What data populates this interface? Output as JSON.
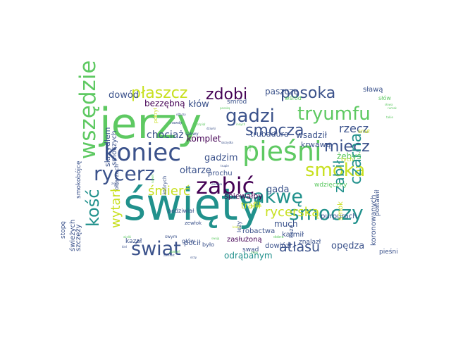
{
  "wordcloud": {
    "words": [
      {
        "text": "święty",
        "color": "#21918c"
      },
      {
        "text": "jerzy",
        "color": "#5ec962"
      },
      {
        "text": "pieśni",
        "color": "#5ec962"
      },
      {
        "text": "koniec",
        "color": "#3b528b"
      },
      {
        "text": "zabić",
        "color": "#440154"
      },
      {
        "text": "wszędzie",
        "color": "#5ec962"
      },
      {
        "text": "tryumfu",
        "color": "#5ec962"
      },
      {
        "text": "rycerz",
        "color": "#3b528b"
      },
      {
        "text": "smoczy",
        "color": "#21918c"
      },
      {
        "text": "sakwę",
        "color": "#21918c"
      },
      {
        "text": "świat",
        "color": "#3b528b"
      },
      {
        "text": "gadzi",
        "color": "#3b528b"
      },
      {
        "text": "smoka",
        "color": "#c8e020"
      },
      {
        "text": "kość",
        "color": "#21918c"
      },
      {
        "text": "posoka",
        "color": "#3b528b"
      },
      {
        "text": "zdobi",
        "color": "#440154"
      },
      {
        "text": "płaszcz",
        "color": "#c8e020"
      },
      {
        "text": "smocza",
        "color": "#3b528b"
      },
      {
        "text": "miecz",
        "color": "#3b528b"
      },
      {
        "text": "czarna",
        "color": "#21918c"
      },
      {
        "text": "zabił",
        "color": "#21918c"
      },
      {
        "text": "atłasu",
        "color": "#3b528b"
      },
      {
        "text": "wytarł",
        "color": "#c8e020"
      },
      {
        "text": "śmierć",
        "color": "#c8e020"
      },
      {
        "text": "rycerską",
        "color": "#c8e020"
      },
      {
        "text": "rzecz",
        "color": "#3b528b"
      },
      {
        "text": "dowód",
        "color": "#3b528b"
      },
      {
        "text": "bezzębną",
        "color": "#440154"
      },
      {
        "text": "kłów",
        "color": "#3b528b"
      },
      {
        "text": "paszczę",
        "color": "#3b528b"
      },
      {
        "text": "sławą",
        "color": "#3b528b"
      },
      {
        "text": "chociaż",
        "color": "#3b528b"
      },
      {
        "text": "komplet",
        "color": "#440154"
      },
      {
        "text": "wsadził",
        "color": "#3b528b"
      },
      {
        "text": "gadzim",
        "color": "#3b528b"
      },
      {
        "text": "ołtarze",
        "color": "#3b528b"
      },
      {
        "text": "gada",
        "color": "#3b528b"
      },
      {
        "text": "trafił",
        "color": "#c8e020"
      },
      {
        "text": "much",
        "color": "#3b528b"
      },
      {
        "text": "odrąbanym",
        "color": "#21918c"
      },
      {
        "text": "opędza",
        "color": "#3b528b"
      },
      {
        "text": "smoczych",
        "color": "#3b528b"
      },
      {
        "text": "skrzydłem",
        "color": "#3b528b"
      },
      {
        "text": "żebyś",
        "color": "#5ec962"
      },
      {
        "text": "śpiewałby",
        "color": "#440154"
      },
      {
        "text": "zasłużoną",
        "color": "#440154"
      },
      {
        "text": "świeżych",
        "color": "#3b528b"
      },
      {
        "text": "szczęży",
        "color": "#3b528b"
      },
      {
        "text": "trubadura",
        "color": "#3b528b"
      },
      {
        "text": "krwawą",
        "color": "#3b528b"
      },
      {
        "text": "prochu",
        "color": "#3b528b"
      },
      {
        "text": "pocił",
        "color": "#3b528b"
      },
      {
        "text": "robactwa",
        "color": "#3b528b"
      },
      {
        "text": "purpurach",
        "color": "#3b528b"
      },
      {
        "text": "koronowanych",
        "color": "#3b528b"
      },
      {
        "text": "postawił",
        "color": "#3b528b"
      },
      {
        "text": "smok",
        "color": "#c8e020"
      },
      {
        "text": "karmił",
        "color": "#3b528b"
      },
      {
        "text": "dowiózł",
        "color": "#3b528b"
      },
      {
        "text": "kazał",
        "color": "#3b528b"
      },
      {
        "text": "głów",
        "color": "#3b528b"
      },
      {
        "text": "leży",
        "color": "#3b528b"
      },
      {
        "text": "wdzięczny",
        "color": "#5ec962"
      },
      {
        "text": "znalazł",
        "color": "#3b528b"
      },
      {
        "text": "smród",
        "color": "#3b528b"
      },
      {
        "text": "wśród",
        "color": "#5ec962"
      },
      {
        "text": "słów",
        "color": "#5ec962"
      },
      {
        "text": "snuł",
        "color": "#c8e020"
      },
      {
        "text": "smokobójcę",
        "color": "#3b528b"
      },
      {
        "text": "ołtarzach",
        "color": "#3b528b"
      },
      {
        "text": "stopę",
        "color": "#3b528b"
      },
      {
        "text": "podziwiał",
        "color": "#3b528b"
      },
      {
        "text": "zewłok",
        "color": "#3b528b"
      },
      {
        "text": "było",
        "color": "#3b528b"
      },
      {
        "text": "swąd",
        "color": "#3b528b"
      },
      {
        "text": "kazę",
        "color": "#3b528b"
      },
      {
        "text": "pieśni",
        "color": "#3b528b"
      },
      {
        "text": "których",
        "color": "#3b528b"
      },
      {
        "text": "tych",
        "color": "#c8e020"
      },
      {
        "text": "pokrył",
        "color": "#c8e020"
      },
      {
        "text": "swym",
        "color": "#3b528b"
      },
      {
        "text": "sakwy",
        "color": "#3b528b"
      },
      {
        "text": "nawdy",
        "color": "#3b528b"
      },
      {
        "text": "dziurki",
        "color": "#3b528b"
      },
      {
        "text": "dobra",
        "color": "#5ec962"
      },
      {
        "text": "rozpiął",
        "color": "#5ec962"
      },
      {
        "text": "trupie",
        "color": "#3b528b"
      },
      {
        "text": "ziemi",
        "color": "#3b528b"
      },
      {
        "text": "mnie",
        "color": "#5ec962"
      },
      {
        "text": "krwią",
        "color": "#c8e020"
      },
      {
        "text": "wszak",
        "color": "#c8e020"
      },
      {
        "text": "zdjął",
        "color": "#5ec962"
      },
      {
        "text": "posoką",
        "color": "#5ec962"
      },
      {
        "text": "swoją",
        "color": "#5ec962"
      },
      {
        "text": "innych",
        "color": "#5ec962"
      },
      {
        "text": "został",
        "color": "#5ec962"
      },
      {
        "text": "skrzydła",
        "color": "#3b528b"
      },
      {
        "text": "nawet",
        "color": "#5ec962"
      },
      {
        "text": "ścierwa",
        "color": "#3b528b"
      },
      {
        "text": "zamiast",
        "color": "#3b528b"
      },
      {
        "text": "ołtarzy",
        "color": "#3b528b"
      },
      {
        "text": "oczy",
        "color": "#3b528b"
      },
      {
        "text": "słowa",
        "color": "#5ec962"
      },
      {
        "text": "takie",
        "color": "#5ec962"
      },
      {
        "text": "wielki",
        "color": "#5ec962"
      },
      {
        "text": "kiel",
        "color": "#3b528b"
      },
      {
        "text": "rumak",
        "color": "#5ec962"
      }
    ]
  }
}
